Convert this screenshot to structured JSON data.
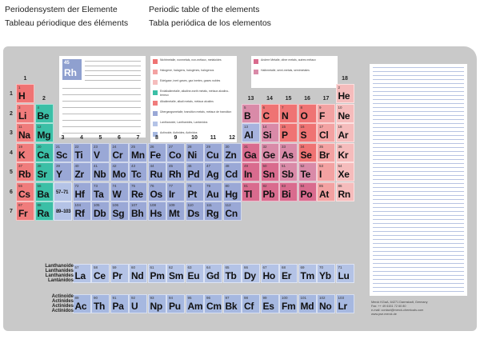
{
  "titles": {
    "de": "Periodensystem der Elemente",
    "en": "Periodic table of the elements",
    "fr": "Tableau périodique des éléments",
    "es": "Tabla periódica de los elementos"
  },
  "colors": {
    "alkali": "#f07c7c",
    "alkaline": "#3bbfa6",
    "transition": "#9aa8d6",
    "post": "#a7b3de",
    "metalloid": "#d98aa8",
    "nonmetal": "#ef7373",
    "halogen": "#f3a2a2",
    "noble": "#f5bcbc",
    "chalc": "#d96b8e",
    "lanth": "#b4c3e6",
    "act": "#a6b8e0",
    "h": "#ef7373"
  },
  "groups": [
    "1",
    "2",
    "3",
    "4",
    "5",
    "6",
    "7",
    "8",
    "9",
    "10",
    "11",
    "12",
    "13",
    "14",
    "15",
    "16",
    "17",
    "18"
  ],
  "periods": [
    "1",
    "2",
    "3",
    "4",
    "5",
    "6",
    "7"
  ],
  "legend": {
    "example_number": "45",
    "example_symbol": "Rh"
  },
  "series": {
    "lanth": [
      "Lanthanoide",
      "Lanthanides",
      "Lanthanides",
      "Lantánidos"
    ],
    "act": [
      "Actinoide",
      "Actinides",
      "Actinides",
      "Actínidos"
    ],
    "la_range": "57–71",
    "ac_range": "89–103"
  },
  "elements": [
    {
      "n": "1",
      "s": "H",
      "c": "h",
      "g": 1,
      "p": 1
    },
    {
      "n": "2",
      "s": "He",
      "c": "noble",
      "g": 18,
      "p": 1
    },
    {
      "n": "3",
      "s": "Li",
      "c": "alkali",
      "g": 1,
      "p": 2
    },
    {
      "n": "4",
      "s": "Be",
      "c": "alkaline",
      "g": 2,
      "p": 2
    },
    {
      "n": "5",
      "s": "B",
      "c": "metalloid",
      "g": 13,
      "p": 2
    },
    {
      "n": "6",
      "s": "C",
      "c": "nonmetal",
      "g": 14,
      "p": 2
    },
    {
      "n": "7",
      "s": "N",
      "c": "nonmetal",
      "g": 15,
      "p": 2
    },
    {
      "n": "8",
      "s": "O",
      "c": "nonmetal",
      "g": 16,
      "p": 2
    },
    {
      "n": "9",
      "s": "F",
      "c": "halogen",
      "g": 17,
      "p": 2
    },
    {
      "n": "10",
      "s": "Ne",
      "c": "noble",
      "g": 18,
      "p": 2
    },
    {
      "n": "11",
      "s": "Na",
      "c": "alkali",
      "g": 1,
      "p": 3
    },
    {
      "n": "12",
      "s": "Mg",
      "c": "alkaline",
      "g": 2,
      "p": 3
    },
    {
      "n": "13",
      "s": "Al",
      "c": "post",
      "g": 13,
      "p": 3
    },
    {
      "n": "14",
      "s": "Si",
      "c": "metalloid",
      "g": 14,
      "p": 3
    },
    {
      "n": "15",
      "s": "P",
      "c": "nonmetal",
      "g": 15,
      "p": 3
    },
    {
      "n": "16",
      "s": "S",
      "c": "nonmetal",
      "g": 16,
      "p": 3
    },
    {
      "n": "17",
      "s": "Cl",
      "c": "halogen",
      "g": 17,
      "p": 3
    },
    {
      "n": "18",
      "s": "Ar",
      "c": "noble",
      "g": 18,
      "p": 3
    },
    {
      "n": "19",
      "s": "K",
      "c": "alkali",
      "g": 1,
      "p": 4
    },
    {
      "n": "20",
      "s": "Ca",
      "c": "alkaline",
      "g": 2,
      "p": 4
    },
    {
      "n": "21",
      "s": "Sc",
      "c": "transition",
      "g": 3,
      "p": 4
    },
    {
      "n": "22",
      "s": "Ti",
      "c": "transition",
      "g": 4,
      "p": 4
    },
    {
      "n": "23",
      "s": "V",
      "c": "transition",
      "g": 5,
      "p": 4
    },
    {
      "n": "24",
      "s": "Cr",
      "c": "transition",
      "g": 6,
      "p": 4
    },
    {
      "n": "25",
      "s": "Mn",
      "c": "transition",
      "g": 7,
      "p": 4
    },
    {
      "n": "26",
      "s": "Fe",
      "c": "transition",
      "g": 8,
      "p": 4
    },
    {
      "n": "27",
      "s": "Co",
      "c": "transition",
      "g": 9,
      "p": 4
    },
    {
      "n": "28",
      "s": "Ni",
      "c": "transition",
      "g": 10,
      "p": 4
    },
    {
      "n": "29",
      "s": "Cu",
      "c": "transition",
      "g": 11,
      "p": 4
    },
    {
      "n": "30",
      "s": "Zn",
      "c": "transition",
      "g": 12,
      "p": 4
    },
    {
      "n": "31",
      "s": "Ga",
      "c": "chalc",
      "g": 13,
      "p": 4
    },
    {
      "n": "32",
      "s": "Ge",
      "c": "metalloid",
      "g": 14,
      "p": 4
    },
    {
      "n": "33",
      "s": "As",
      "c": "metalloid",
      "g": 15,
      "p": 4
    },
    {
      "n": "34",
      "s": "Se",
      "c": "nonmetal",
      "g": 16,
      "p": 4
    },
    {
      "n": "35",
      "s": "Br",
      "c": "halogen",
      "g": 17,
      "p": 4
    },
    {
      "n": "36",
      "s": "Kr",
      "c": "noble",
      "g": 18,
      "p": 4
    },
    {
      "n": "37",
      "s": "Rb",
      "c": "alkali",
      "g": 1,
      "p": 5
    },
    {
      "n": "38",
      "s": "Sr",
      "c": "alkaline",
      "g": 2,
      "p": 5
    },
    {
      "n": "39",
      "s": "Y",
      "c": "transition",
      "g": 3,
      "p": 5
    },
    {
      "n": "40",
      "s": "Zr",
      "c": "transition",
      "g": 4,
      "p": 5
    },
    {
      "n": "41",
      "s": "Nb",
      "c": "transition",
      "g": 5,
      "p": 5
    },
    {
      "n": "42",
      "s": "Mo",
      "c": "transition",
      "g": 6,
      "p": 5
    },
    {
      "n": "43",
      "s": "Tc",
      "c": "transition",
      "g": 7,
      "p": 5
    },
    {
      "n": "44",
      "s": "Ru",
      "c": "transition",
      "g": 8,
      "p": 5
    },
    {
      "n": "45",
      "s": "Rh",
      "c": "transition",
      "g": 9,
      "p": 5
    },
    {
      "n": "46",
      "s": "Pd",
      "c": "transition",
      "g": 10,
      "p": 5
    },
    {
      "n": "47",
      "s": "Ag",
      "c": "transition",
      "g": 11,
      "p": 5
    },
    {
      "n": "48",
      "s": "Cd",
      "c": "transition",
      "g": 12,
      "p": 5
    },
    {
      "n": "49",
      "s": "In",
      "c": "chalc",
      "g": 13,
      "p": 5
    },
    {
      "n": "50",
      "s": "Sn",
      "c": "chalc",
      "g": 14,
      "p": 5
    },
    {
      "n": "51",
      "s": "Sb",
      "c": "metalloid",
      "g": 15,
      "p": 5
    },
    {
      "n": "52",
      "s": "Te",
      "c": "metalloid",
      "g": 16,
      "p": 5
    },
    {
      "n": "53",
      "s": "I",
      "c": "halogen",
      "g": 17,
      "p": 5
    },
    {
      "n": "54",
      "s": "Xe",
      "c": "noble",
      "g": 18,
      "p": 5
    },
    {
      "n": "55",
      "s": "Cs",
      "c": "alkali",
      "g": 1,
      "p": 6
    },
    {
      "n": "56",
      "s": "Ba",
      "c": "alkaline",
      "g": 2,
      "p": 6
    },
    {
      "n": "72",
      "s": "Hf",
      "c": "transition",
      "g": 4,
      "p": 6
    },
    {
      "n": "73",
      "s": "Ta",
      "c": "transition",
      "g": 5,
      "p": 6
    },
    {
      "n": "74",
      "s": "W",
      "c": "transition",
      "g": 6,
      "p": 6
    },
    {
      "n": "75",
      "s": "Re",
      "c": "transition",
      "g": 7,
      "p": 6
    },
    {
      "n": "76",
      "s": "Os",
      "c": "transition",
      "g": 8,
      "p": 6
    },
    {
      "n": "77",
      "s": "Ir",
      "c": "transition",
      "g": 9,
      "p": 6
    },
    {
      "n": "78",
      "s": "Pt",
      "c": "transition",
      "g": 10,
      "p": 6
    },
    {
      "n": "79",
      "s": "Au",
      "c": "transition",
      "g": 11,
      "p": 6
    },
    {
      "n": "80",
      "s": "Hg",
      "c": "transition",
      "g": 12,
      "p": 6
    },
    {
      "n": "81",
      "s": "Tl",
      "c": "chalc",
      "g": 13,
      "p": 6
    },
    {
      "n": "82",
      "s": "Pb",
      "c": "chalc",
      "g": 14,
      "p": 6
    },
    {
      "n": "83",
      "s": "Bi",
      "c": "chalc",
      "g": 15,
      "p": 6
    },
    {
      "n": "84",
      "s": "Po",
      "c": "chalc",
      "g": 16,
      "p": 6
    },
    {
      "n": "85",
      "s": "At",
      "c": "halogen",
      "g": 17,
      "p": 6
    },
    {
      "n": "86",
      "s": "Rn",
      "c": "noble",
      "g": 18,
      "p": 6
    },
    {
      "n": "87",
      "s": "Fr",
      "c": "alkali",
      "g": 1,
      "p": 7
    },
    {
      "n": "88",
      "s": "Ra",
      "c": "alkaline",
      "g": 2,
      "p": 7
    },
    {
      "n": "104",
      "s": "Rf",
      "c": "transition",
      "g": 4,
      "p": 7
    },
    {
      "n": "105",
      "s": "Db",
      "c": "transition",
      "g": 5,
      "p": 7
    },
    {
      "n": "106",
      "s": "Sg",
      "c": "transition",
      "g": 6,
      "p": 7
    },
    {
      "n": "107",
      "s": "Bh",
      "c": "transition",
      "g": 7,
      "p": 7
    },
    {
      "n": "108",
      "s": "Hs",
      "c": "transition",
      "g": 8,
      "p": 7
    },
    {
      "n": "109",
      "s": "Mt",
      "c": "transition",
      "g": 9,
      "p": 7
    },
    {
      "n": "110",
      "s": "Ds",
      "c": "transition",
      "g": 10,
      "p": 7
    },
    {
      "n": "111",
      "s": "Rg",
      "c": "transition",
      "g": 11,
      "p": 7
    },
    {
      "n": "112",
      "s": "Cn",
      "c": "transition",
      "g": 12,
      "p": 7
    }
  ],
  "lanthanides": [
    {
      "n": "57",
      "s": "La"
    },
    {
      "n": "58",
      "s": "Ce"
    },
    {
      "n": "59",
      "s": "Pr"
    },
    {
      "n": "60",
      "s": "Nd"
    },
    {
      "n": "61",
      "s": "Pm"
    },
    {
      "n": "62",
      "s": "Sm"
    },
    {
      "n": "63",
      "s": "Eu"
    },
    {
      "n": "64",
      "s": "Gd"
    },
    {
      "n": "65",
      "s": "Tb"
    },
    {
      "n": "66",
      "s": "Dy"
    },
    {
      "n": "67",
      "s": "Ho"
    },
    {
      "n": "68",
      "s": "Er"
    },
    {
      "n": "69",
      "s": "Tm"
    },
    {
      "n": "70",
      "s": "Yb"
    },
    {
      "n": "71",
      "s": "Lu"
    }
  ],
  "actinides": [
    {
      "n": "89",
      "s": "Ac"
    },
    {
      "n": "90",
      "s": "Th"
    },
    {
      "n": "91",
      "s": "Pa"
    },
    {
      "n": "92",
      "s": "U"
    },
    {
      "n": "93",
      "s": "Np"
    },
    {
      "n": "94",
      "s": "Pu"
    },
    {
      "n": "95",
      "s": "Am"
    },
    {
      "n": "96",
      "s": "Cm"
    },
    {
      "n": "97",
      "s": "Bk"
    },
    {
      "n": "98",
      "s": "Cf"
    },
    {
      "n": "99",
      "s": "Es"
    },
    {
      "n": "100",
      "s": "Fm"
    },
    {
      "n": "101",
      "s": "Md"
    },
    {
      "n": "102",
      "s": "No"
    },
    {
      "n": "103",
      "s": "Lr"
    }
  ],
  "categories_left": [
    {
      "c": "nonmetal",
      "t": "Nichtmetalle, nonmetals, non-métaux, metaloides"
    },
    {
      "c": "halogen",
      "t": "Halogene, halogens, halogènes, halógenos"
    },
    {
      "c": "noble",
      "t": "Edelgase, inert gases, gaz inertes, gases nobles"
    },
    {
      "c": "alkaline",
      "t": "Erdalkalimetalle, alkaline-earth metals, métaux alcalino-terreux"
    },
    {
      "c": "alkali",
      "t": "Alkalimetalle, alkali metals, métaux alcalins"
    },
    {
      "c": "transition",
      "t": "Übergangsmetalle, transition metals, métaux de transition"
    },
    {
      "c": "lanth",
      "t": "Lanthanoide, Lanthanides, Lantánidos"
    },
    {
      "c": "act",
      "t": "Actinoide, Actinides, Actínidos"
    }
  ],
  "categories_right": [
    {
      "c": "chalc",
      "t": "Andere Metalle, other metals, autres métaux"
    },
    {
      "c": "metalloid",
      "t": "Halbmetalle, semi-metals, semimetales"
    }
  ],
  "merck": {
    "l1": "Merck KGaA, 64271 Darmstadt, Germany",
    "l2": "Fax: ++ 49 6151 72 60 80",
    "l3": "e-mail: contact@merck-chemicals.com",
    "l4": "www.pse.merck.de"
  }
}
